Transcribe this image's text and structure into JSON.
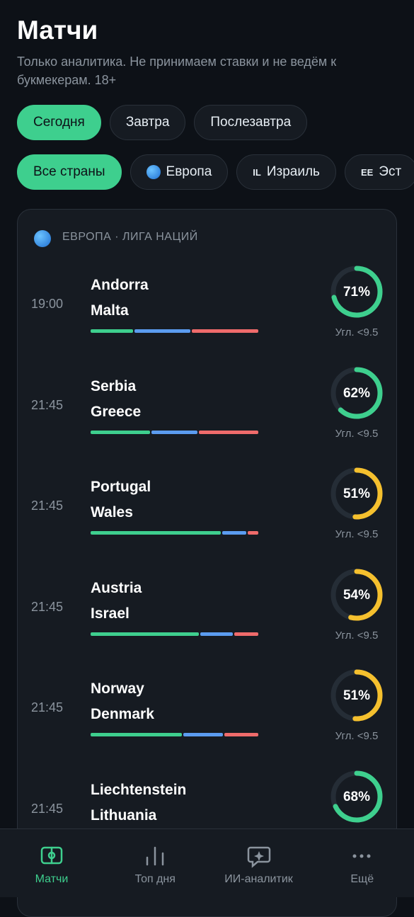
{
  "header": {
    "title": "Матчи",
    "subtitle": "Только аналитика. Не принимаем ставки и не ведём к букмекерам. 18+"
  },
  "day_filters": [
    "Сегодня",
    "Завтра",
    "Послезавтра"
  ],
  "country_filters": [
    {
      "label": "Все страны"
    },
    {
      "label": "Европа",
      "icon": "globe"
    },
    {
      "label": "Израиль",
      "flag": "IL"
    },
    {
      "label": "Эст",
      "flag": "EE"
    }
  ],
  "league": {
    "title": "ЕВРОПА · ЛИГА НАЦИЙ",
    "matches": [
      {
        "time": "19:00",
        "home": "Andorra",
        "away": "Malta",
        "bar": [
          26,
          34,
          40
        ],
        "value": 71,
        "value_label": "71%",
        "color": "#3ecf8e",
        "market": "Угл. <9.5"
      },
      {
        "time": "21:45",
        "home": "Serbia",
        "away": "Greece",
        "bar": [
          36,
          28,
          36
        ],
        "value": 62,
        "value_label": "62%",
        "color": "#3ecf8e",
        "market": "Угл. <9.5"
      },
      {
        "time": "21:45",
        "home": "Portugal",
        "away": "Wales",
        "bar": [
          78,
          15,
          7
        ],
        "value": 51,
        "value_label": "51%",
        "color": "#f5c02e",
        "market": "Угл. <9.5"
      },
      {
        "time": "21:45",
        "home": "Austria",
        "away": "Israel",
        "bar": [
          65,
          20,
          15
        ],
        "value": 54,
        "value_label": "54%",
        "color": "#f5c02e",
        "market": "Угл. <9.5"
      },
      {
        "time": "21:45",
        "home": "Norway",
        "away": "Denmark",
        "bar": [
          55,
          24,
          21
        ],
        "value": 51,
        "value_label": "51%",
        "color": "#f5c02e",
        "market": "Угл. <9.5"
      },
      {
        "time": "21:45",
        "home": "Liechtenstein",
        "away": "Lithuania",
        "value": 68,
        "value_label": "68%",
        "color": "#3ecf8e"
      }
    ]
  },
  "nav": [
    "Матчи",
    "Топ дня",
    "ИИ-аналитик",
    "Ещё"
  ]
}
